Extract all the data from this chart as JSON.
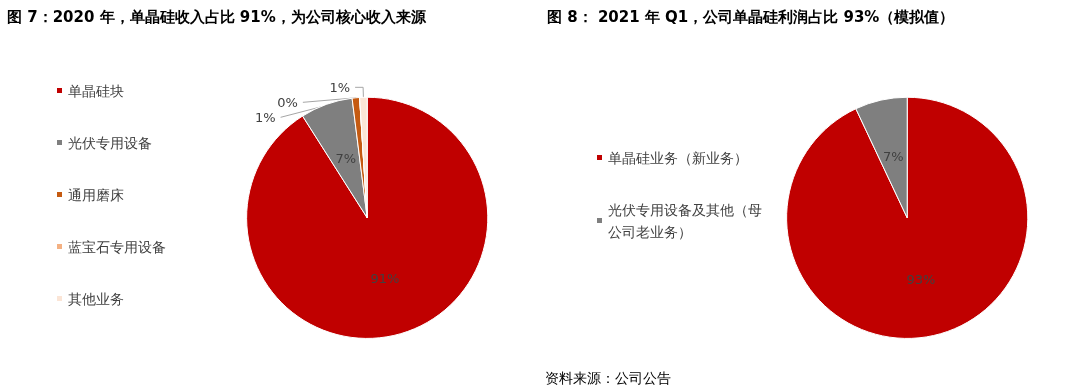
{
  "chart_data": [
    {
      "type": "pie",
      "title": "图 7：2020 年，单晶硅收入占比 91%，为公司核心收入来源",
      "categories": [
        "单晶硅块",
        "光伏专用设备",
        "通用磨床",
        "蓝宝石专用设备",
        "其他业务"
      ],
      "values": [
        91,
        7,
        1,
        0,
        1
      ],
      "colors": [
        "#c00000",
        "#7f7f7f",
        "#c55a11",
        "#f4b183",
        "#fbe5d6"
      ],
      "value_labels": [
        "91%",
        "7%",
        "1%",
        "0%",
        "1%"
      ],
      "legend": "left"
    },
    {
      "type": "pie",
      "title": "图 8： 2021 年 Q1，公司单晶硅利润占比 93%（模拟值）",
      "categories": [
        "单晶硅业务（新业务）",
        "光伏专用设备及其他（母公司老业务）"
      ],
      "values": [
        93,
        7
      ],
      "colors": [
        "#c00000",
        "#7f7f7f"
      ],
      "value_labels": [
        "93%",
        "7%"
      ],
      "legend": "left",
      "annotations": [
        "资料来源：公司公告"
      ]
    }
  ]
}
